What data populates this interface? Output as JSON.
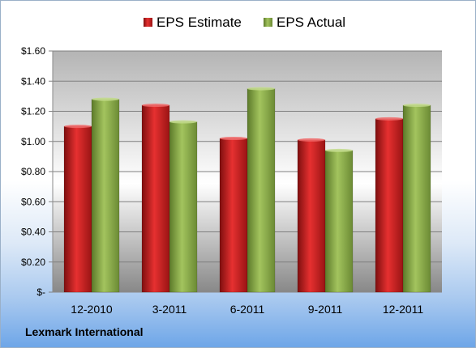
{
  "chart_data": {
    "type": "bar",
    "title": "",
    "xlabel": "",
    "ylabel": "",
    "categories": [
      "12-2010",
      "3-2011",
      "6-2011",
      "9-2011",
      "12-2011"
    ],
    "series": [
      {
        "name": "EPS Estimate",
        "values": [
          1.1,
          1.24,
          1.02,
          1.01,
          1.15
        ],
        "color": "#cc1f1f"
      },
      {
        "name": "EPS Actual",
        "values": [
          1.28,
          1.13,
          1.35,
          0.94,
          1.24
        ],
        "color": "#8bab4a"
      }
    ],
    "ylim": [
      0,
      1.6
    ],
    "yticks": [
      0,
      0.2,
      0.4,
      0.6,
      0.8,
      1.0,
      1.2,
      1.4,
      1.6
    ],
    "ytick_labels": [
      "$-",
      "$0.20",
      "$0.40",
      "$0.60",
      "$0.80",
      "$1.00",
      "$1.20",
      "$1.40",
      "$1.60"
    ],
    "grid": true,
    "legend_position": "top"
  },
  "footer": {
    "company": "Lexmark International"
  }
}
